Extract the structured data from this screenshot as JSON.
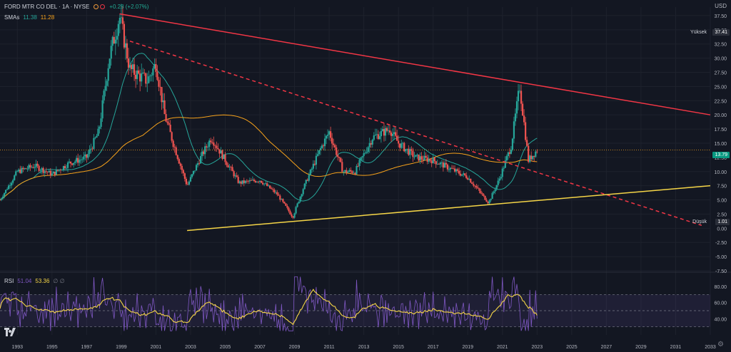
{
  "header": {
    "symbol_title": "FORD MTR CO DEL · 1A · NYSE",
    "change": "+0.28 (+2.07%)",
    "currency": "USD"
  },
  "sma_legend": {
    "label": "SMAs",
    "value1": "11.38",
    "value2": "11.28"
  },
  "rsi_legend": {
    "label": "RSI",
    "value1": "51.04",
    "value2": "53.36",
    "extra": "∅ ∅"
  },
  "price_axis": {
    "labels": [
      "37.50",
      "35.00",
      "32.50",
      "30.00",
      "27.50",
      "25.00",
      "22.50",
      "20.00",
      "17.50",
      "15.00",
      "12.50",
      "10.00",
      "7.50",
      "5.00",
      "2.50",
      "0.00",
      "-2.50",
      "-5.00",
      "-7.50"
    ],
    "high_label": "Yüksek",
    "high_value": "37.41",
    "last_value": "13.79",
    "low_label": "Düşük",
    "low_value": "1.01"
  },
  "rsi_axis": {
    "labels": [
      "80.00",
      "60.00",
      "40.00"
    ]
  },
  "time_axis": {
    "labels": [
      "1993",
      "1995",
      "1997",
      "1999",
      "2001",
      "2003",
      "2005",
      "2007",
      "2009",
      "2011",
      "2013",
      "2015",
      "2017",
      "2019",
      "2021",
      "2023",
      "2025",
      "2027",
      "2029",
      "2031",
      "2033"
    ]
  },
  "colors": {
    "background": "#131722",
    "up": "#26a69a",
    "down": "#ef5350",
    "sma_fast": "#26a69a",
    "sma_slow": "#f7a21b",
    "trend_upper": "#f23645",
    "trend_lower": "#f5d547",
    "rsi": "#7e57c2",
    "rsi_ma": "#f5d547"
  },
  "icons": {
    "logo": "tradingview-logo-icon",
    "settings": "gear-icon"
  },
  "chart_data": {
    "type": "candlestick",
    "interval": "1 month",
    "ylim": [
      -7.5,
      39
    ],
    "xlim": [
      1992.0,
      2033.0
    ],
    "closes_by_year": [
      {
        "x": 1992.0,
        "y": 5.0
      },
      {
        "x": 1993.0,
        "y": 10.0
      },
      {
        "x": 1994.0,
        "y": 11.0
      },
      {
        "x": 1995.0,
        "y": 9.5
      },
      {
        "x": 1996.0,
        "y": 11.5
      },
      {
        "x": 1997.0,
        "y": 12.5
      },
      {
        "x": 1997.7,
        "y": 17.0
      },
      {
        "x": 1998.3,
        "y": 30.0
      },
      {
        "x": 1998.9,
        "y": 37.4
      },
      {
        "x": 1999.5,
        "y": 28.0
      },
      {
        "x": 2000.5,
        "y": 26.0
      },
      {
        "x": 2001.0,
        "y": 29.0
      },
      {
        "x": 2001.5,
        "y": 20.0
      },
      {
        "x": 2002.0,
        "y": 15.0
      },
      {
        "x": 2002.8,
        "y": 7.5
      },
      {
        "x": 2003.5,
        "y": 12.0
      },
      {
        "x": 2004.2,
        "y": 16.0
      },
      {
        "x": 2005.0,
        "y": 12.0
      },
      {
        "x": 2005.8,
        "y": 8.0
      },
      {
        "x": 2007.0,
        "y": 8.5
      },
      {
        "x": 2008.0,
        "y": 6.0
      },
      {
        "x": 2008.9,
        "y": 2.0
      },
      {
        "x": 2009.5,
        "y": 7.0
      },
      {
        "x": 2010.5,
        "y": 14.0
      },
      {
        "x": 2011.0,
        "y": 17.0
      },
      {
        "x": 2011.8,
        "y": 10.0
      },
      {
        "x": 2012.5,
        "y": 10.0
      },
      {
        "x": 2013.5,
        "y": 16.0
      },
      {
        "x": 2014.5,
        "y": 17.5
      },
      {
        "x": 2015.0,
        "y": 15.0
      },
      {
        "x": 2016.0,
        "y": 12.5
      },
      {
        "x": 2017.0,
        "y": 12.0
      },
      {
        "x": 2018.0,
        "y": 10.5
      },
      {
        "x": 2019.0,
        "y": 9.0
      },
      {
        "x": 2020.2,
        "y": 4.5
      },
      {
        "x": 2020.8,
        "y": 8.5
      },
      {
        "x": 2021.5,
        "y": 14.5
      },
      {
        "x": 2022.0,
        "y": 25.0
      },
      {
        "x": 2022.5,
        "y": 12.0
      },
      {
        "x": 2023.0,
        "y": 13.8
      }
    ],
    "high": 37.41,
    "low": 1.01,
    "last": 13.79,
    "trendlines": [
      {
        "style": "solid",
        "color": "trend_upper",
        "points": [
          {
            "x": 1998.9,
            "y": 37.8
          },
          {
            "x": 2033.0,
            "y": 20.0
          }
        ]
      },
      {
        "style": "dashed",
        "color": "trend_upper",
        "points": [
          {
            "x": 1999.5,
            "y": 33.0
          },
          {
            "x": 2032.5,
            "y": 0.5
          }
        ]
      },
      {
        "style": "solid",
        "color": "trend_lower",
        "points": [
          {
            "x": 2002.8,
            "y": -0.4
          },
          {
            "x": 2033.0,
            "y": 7.5
          }
        ]
      }
    ],
    "rsi_ylim": [
      20,
      95
    ],
    "rsi_levels": [
      70,
      50,
      30
    ]
  }
}
